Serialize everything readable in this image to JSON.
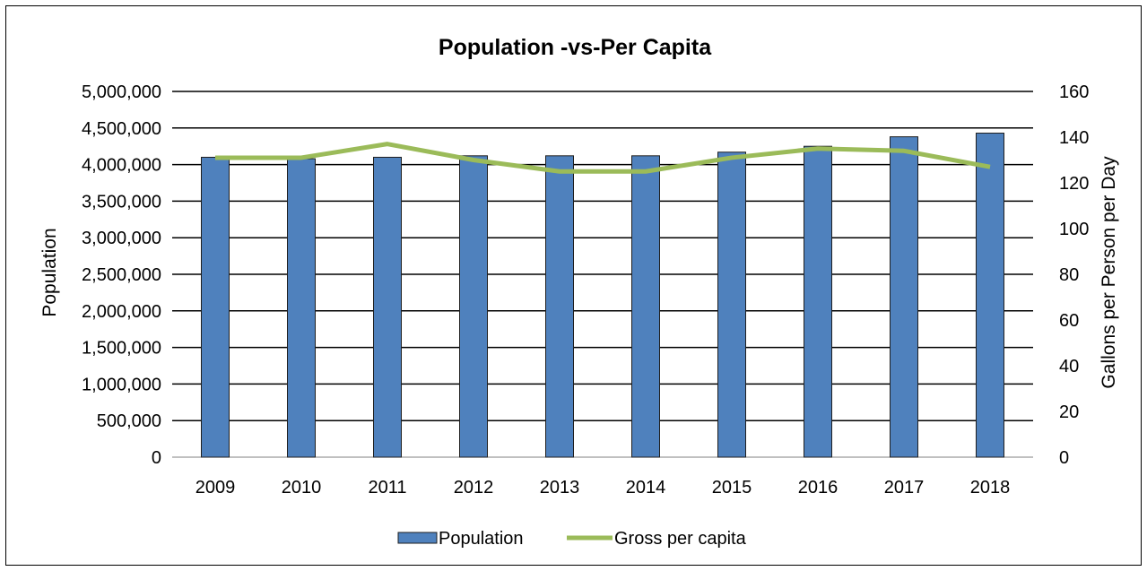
{
  "chart_data": {
    "type": "bar",
    "title": "Population -vs-Per Capita",
    "categories": [
      "2009",
      "2010",
      "2011",
      "2012",
      "2013",
      "2014",
      "2015",
      "2016",
      "2017",
      "2018"
    ],
    "series": [
      {
        "name": "Population",
        "type": "bar",
        "axis": "left",
        "color": "#4f81bd",
        "values": [
          4100000,
          4080000,
          4100000,
          4120000,
          4120000,
          4120000,
          4170000,
          4250000,
          4380000,
          4430000
        ]
      },
      {
        "name": "Gross per capita",
        "type": "line",
        "axis": "right",
        "color": "#9bbb59",
        "values": [
          131,
          131,
          137,
          130,
          125,
          125,
          131,
          135,
          134,
          127
        ]
      }
    ],
    "y_left": {
      "label": "Population",
      "min": 0,
      "max": 5000000,
      "ticks": [
        "0",
        "500,000",
        "1,000,000",
        "1,500,000",
        "2,000,000",
        "2,500,000",
        "3,000,000",
        "3,500,000",
        "4,000,000",
        "4,500,000",
        "5,000,000"
      ]
    },
    "y_right": {
      "label": "Gallons per Person per Day",
      "min": 0,
      "max": 160,
      "ticks": [
        "0",
        "20",
        "40",
        "60",
        "80",
        "100",
        "120",
        "140",
        "160"
      ]
    },
    "grid": true,
    "legend_position": "bottom"
  }
}
